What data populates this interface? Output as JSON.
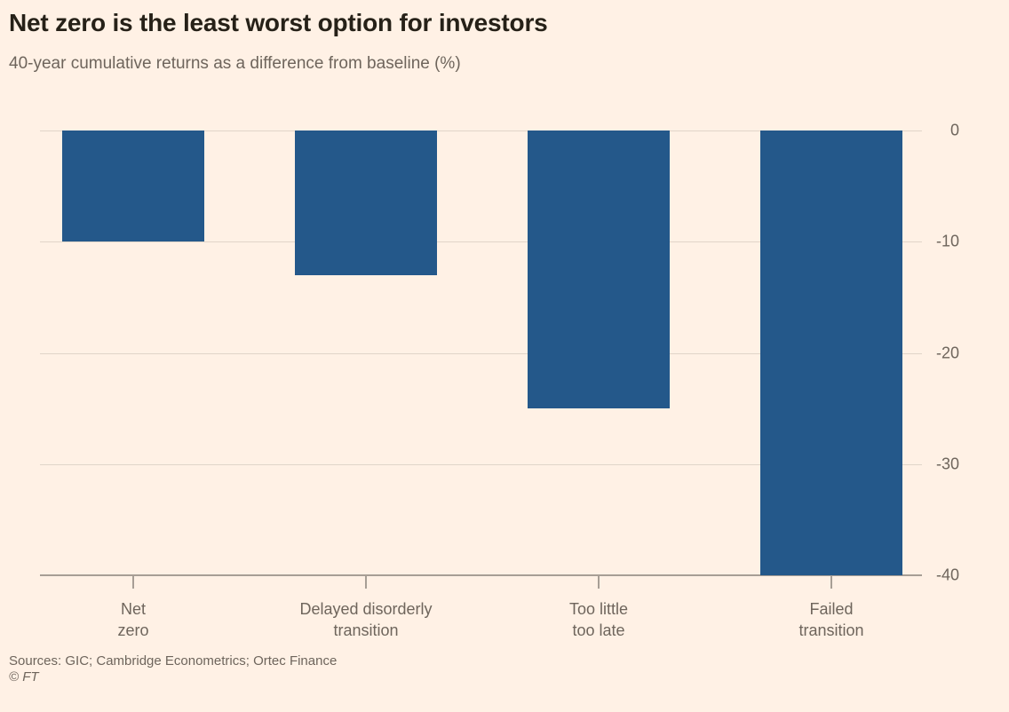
{
  "colors": {
    "background": "#FFF1E5",
    "bar": "#24588A",
    "grid": "#E0D5C9",
    "axis": "#A79E95",
    "title_text": "#262118",
    "muted_text": "#6E655C"
  },
  "chart_data": {
    "type": "bar",
    "title": "Net zero is the least worst option for investors",
    "subtitle": "40-year cumulative returns as a difference from baseline (%)",
    "categories": [
      "Net zero",
      "Delayed disorderly transition",
      "Too little too late",
      "Failed transition"
    ],
    "category_label_lines": [
      [
        "Net",
        "zero"
      ],
      [
        "Delayed disorderly",
        "transition"
      ],
      [
        "Too little",
        "too late"
      ],
      [
        "Failed",
        "transition"
      ]
    ],
    "values": [
      -10,
      -13,
      -25,
      -40
    ],
    "ylim": [
      -40,
      0
    ],
    "yticks": [
      0,
      -10,
      -20,
      -30,
      -40
    ],
    "ytick_labels": [
      "0",
      "-10",
      "-20",
      "-30",
      "-40"
    ],
    "grid": true,
    "y_axis_side": "right",
    "legend": "none",
    "source": "Sources: GIC; Cambridge Econometrics; Ortec Finance",
    "copyright": "© FT"
  }
}
